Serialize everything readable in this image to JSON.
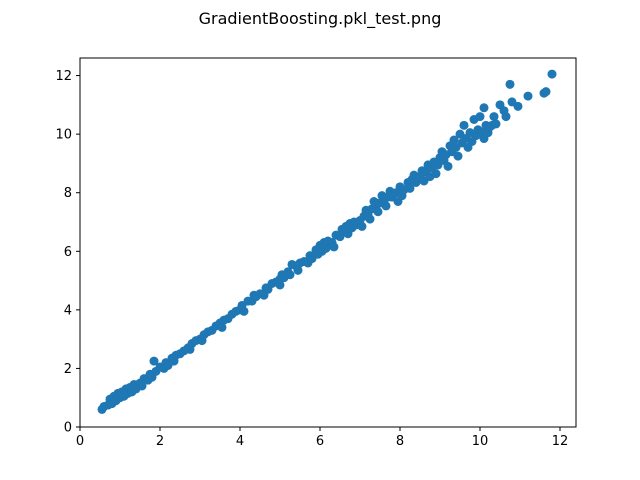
{
  "figure": {
    "title": "GradientBoosting.pkl_test.png"
  },
  "chart_data": {
    "type": "scatter",
    "title": "GradientBoosting.pkl_test.png",
    "xlabel": "",
    "ylabel": "",
    "xlim": [
      0,
      12.4
    ],
    "ylim": [
      0,
      12.6
    ],
    "xticks": [
      0,
      2,
      4,
      6,
      8,
      10,
      12
    ],
    "yticks": [
      0,
      2,
      4,
      6,
      8,
      10,
      12
    ],
    "grid": false,
    "legend": "none",
    "colors": {
      "marker": "#1f77b4",
      "axes": "#000000",
      "background": "#ffffff"
    },
    "series": [
      {
        "points": [
          [
            0.55,
            0.6
          ],
          [
            0.6,
            0.7
          ],
          [
            0.7,
            0.75
          ],
          [
            0.75,
            0.95
          ],
          [
            0.8,
            0.8
          ],
          [
            0.85,
            1.05
          ],
          [
            0.9,
            0.9
          ],
          [
            0.95,
            1.15
          ],
          [
            1.0,
            1.0
          ],
          [
            1.05,
            1.2
          ],
          [
            1.1,
            1.05
          ],
          [
            1.15,
            1.3
          ],
          [
            1.2,
            1.15
          ],
          [
            1.25,
            1.35
          ],
          [
            1.3,
            1.2
          ],
          [
            1.35,
            1.45
          ],
          [
            1.4,
            1.3
          ],
          [
            1.5,
            1.5
          ],
          [
            1.55,
            1.4
          ],
          [
            1.6,
            1.65
          ],
          [
            1.7,
            1.6
          ],
          [
            1.75,
            1.8
          ],
          [
            1.8,
            1.7
          ],
          [
            1.85,
            2.25
          ],
          [
            1.9,
            1.9
          ],
          [
            2.0,
            2.05
          ],
          [
            2.1,
            2.0
          ],
          [
            2.15,
            2.2
          ],
          [
            2.2,
            2.1
          ],
          [
            2.3,
            2.35
          ],
          [
            2.35,
            2.25
          ],
          [
            2.4,
            2.45
          ],
          [
            2.5,
            2.5
          ],
          [
            2.6,
            2.6
          ],
          [
            2.7,
            2.7
          ],
          [
            2.75,
            2.65
          ],
          [
            2.8,
            2.85
          ],
          [
            2.9,
            2.95
          ],
          [
            3.0,
            3.0
          ],
          [
            3.05,
            2.95
          ],
          [
            3.1,
            3.15
          ],
          [
            3.2,
            3.25
          ],
          [
            3.3,
            3.3
          ],
          [
            3.4,
            3.45
          ],
          [
            3.5,
            3.55
          ],
          [
            3.55,
            3.4
          ],
          [
            3.6,
            3.65
          ],
          [
            3.7,
            3.7
          ],
          [
            3.8,
            3.85
          ],
          [
            3.9,
            3.95
          ],
          [
            4.0,
            4.0
          ],
          [
            4.05,
            4.15
          ],
          [
            4.1,
            3.95
          ],
          [
            4.2,
            4.3
          ],
          [
            4.3,
            4.3
          ],
          [
            4.35,
            4.5
          ],
          [
            4.4,
            4.45
          ],
          [
            4.5,
            4.55
          ],
          [
            4.6,
            4.5
          ],
          [
            4.65,
            4.75
          ],
          [
            4.7,
            4.7
          ],
          [
            4.8,
            4.9
          ],
          [
            4.9,
            4.95
          ],
          [
            5.0,
            5.05
          ],
          [
            5.0,
            4.85
          ],
          [
            5.05,
            5.2
          ],
          [
            5.1,
            5.1
          ],
          [
            5.2,
            5.3
          ],
          [
            5.25,
            5.2
          ],
          [
            5.3,
            5.55
          ],
          [
            5.4,
            5.5
          ],
          [
            5.45,
            5.35
          ],
          [
            5.5,
            5.6
          ],
          [
            5.6,
            5.65
          ],
          [
            5.7,
            5.6
          ],
          [
            5.75,
            5.85
          ],
          [
            5.8,
            5.75
          ],
          [
            5.9,
            6.05
          ],
          [
            5.95,
            5.9
          ],
          [
            6.0,
            6.2
          ],
          [
            6.05,
            6.0
          ],
          [
            6.1,
            6.3
          ],
          [
            6.15,
            6.1
          ],
          [
            6.2,
            6.35
          ],
          [
            6.3,
            6.3
          ],
          [
            6.35,
            6.15
          ],
          [
            6.4,
            6.55
          ],
          [
            6.5,
            6.5
          ],
          [
            6.55,
            6.75
          ],
          [
            6.6,
            6.65
          ],
          [
            6.65,
            6.85
          ],
          [
            6.7,
            6.6
          ],
          [
            6.75,
            6.95
          ],
          [
            6.8,
            6.8
          ],
          [
            6.85,
            7.0
          ],
          [
            6.9,
            6.9
          ],
          [
            7.0,
            7.05
          ],
          [
            7.05,
            6.85
          ],
          [
            7.1,
            7.2
          ],
          [
            7.15,
            7.4
          ],
          [
            7.2,
            7.25
          ],
          [
            7.25,
            7.1
          ],
          [
            7.3,
            7.45
          ],
          [
            7.35,
            7.7
          ],
          [
            7.4,
            7.55
          ],
          [
            7.45,
            7.35
          ],
          [
            7.5,
            7.65
          ],
          [
            7.55,
            7.9
          ],
          [
            7.6,
            7.75
          ],
          [
            7.65,
            7.55
          ],
          [
            7.7,
            7.85
          ],
          [
            7.75,
            8.05
          ],
          [
            7.8,
            7.85
          ],
          [
            7.9,
            8.0
          ],
          [
            7.95,
            7.7
          ],
          [
            8.0,
            8.2
          ],
          [
            8.05,
            7.9
          ],
          [
            8.1,
            8.1
          ],
          [
            8.2,
            8.35
          ],
          [
            8.25,
            8.15
          ],
          [
            8.3,
            8.45
          ],
          [
            8.35,
            8.6
          ],
          [
            8.4,
            8.35
          ],
          [
            8.5,
            8.55
          ],
          [
            8.55,
            8.75
          ],
          [
            8.6,
            8.4
          ],
          [
            8.65,
            8.7
          ],
          [
            8.7,
            8.95
          ],
          [
            8.75,
            8.55
          ],
          [
            8.8,
            8.85
          ],
          [
            8.85,
            9.05
          ],
          [
            8.9,
            8.65
          ],
          [
            8.95,
            8.95
          ],
          [
            9.0,
            9.2
          ],
          [
            9.05,
            9.4
          ],
          [
            9.1,
            9.1
          ],
          [
            9.15,
            9.3
          ],
          [
            9.2,
            8.9
          ],
          [
            9.25,
            9.6
          ],
          [
            9.3,
            9.4
          ],
          [
            9.35,
            9.8
          ],
          [
            9.4,
            9.55
          ],
          [
            9.45,
            9.25
          ],
          [
            9.5,
            10.0
          ],
          [
            9.55,
            9.7
          ],
          [
            9.6,
            10.3
          ],
          [
            9.65,
            9.85
          ],
          [
            9.7,
            9.55
          ],
          [
            9.75,
            10.05
          ],
          [
            9.8,
            9.75
          ],
          [
            9.85,
            10.5
          ],
          [
            9.9,
            9.95
          ],
          [
            9.95,
            10.15
          ],
          [
            10.0,
            10.6
          ],
          [
            10.05,
            10.05
          ],
          [
            10.1,
            9.85
          ],
          [
            10.15,
            10.3
          ],
          [
            10.2,
            10.05
          ],
          [
            10.25,
            10.25
          ],
          [
            10.3,
            10.3
          ],
          [
            10.35,
            10.6
          ],
          [
            10.4,
            10.35
          ],
          [
            10.1,
            10.9
          ],
          [
            10.5,
            11.0
          ],
          [
            10.6,
            10.8
          ],
          [
            10.65,
            10.6
          ],
          [
            10.75,
            11.7
          ],
          [
            10.8,
            11.1
          ],
          [
            10.95,
            10.95
          ],
          [
            11.2,
            11.3
          ],
          [
            11.6,
            11.4
          ],
          [
            11.65,
            11.45
          ],
          [
            11.8,
            12.05
          ]
        ]
      }
    ]
  }
}
